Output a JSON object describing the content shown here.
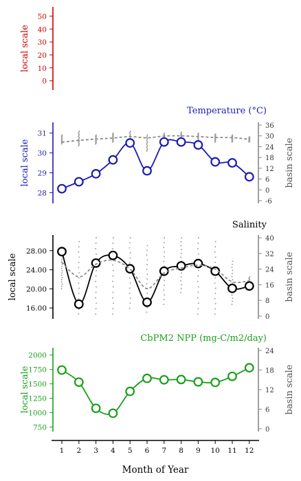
{
  "chart_data": [
    {
      "type": "line",
      "title": "",
      "left_ylabel": "local scale",
      "left_color": "#cc0000",
      "left_ticks": [
        "0",
        "10",
        "20",
        "30",
        "40",
        "50"
      ],
      "left_ylim": [
        -5,
        55
      ],
      "series": []
    },
    {
      "type": "line",
      "title": "Temperature (°C)",
      "left_ylabel": "local scale",
      "right_ylabel": "basin scale",
      "left_color": "#1a1ab3",
      "left_ticks": [
        "28",
        "29",
        "30",
        "31"
      ],
      "left_ylim": [
        27.6,
        31.4
      ],
      "right_ticks": [
        "-6",
        "0",
        "6",
        "12",
        "18",
        "24",
        "30",
        "36"
      ],
      "right_ylim": [
        -6,
        36
      ],
      "x": [
        1,
        2,
        3,
        4,
        5,
        6,
        7,
        8,
        9,
        10,
        11,
        12
      ],
      "series": [
        {
          "name": "",
          "axis": "left",
          "values": [
            28.2,
            28.55,
            28.95,
            29.65,
            30.5,
            29.1,
            30.55,
            30.55,
            30.4,
            29.55,
            29.5,
            28.8
          ]
        },
        {
          "name": "",
          "axis": "right",
          "dashed": true,
          "values": [
            26.5,
            27.5,
            28.2,
            28.8,
            29.6,
            28.9,
            29.9,
            30,
            29.6,
            29.1,
            29,
            28.1
          ]
        }
      ],
      "scatter_band": {
        "axis": "right",
        "min": [
          25.5,
          24.5,
          25.5,
          26.5,
          24.5,
          21.5,
          26.5,
          26.5,
          26.5,
          26.5,
          26.5,
          26.5
        ],
        "max": [
          30.5,
          32.5,
          30.5,
          31.5,
          32.5,
          30.5,
          31.5,
          32,
          31.5,
          31,
          30.5,
          29.5
        ]
      }
    },
    {
      "type": "line",
      "title": "Salinity",
      "left_ylabel": "local scale",
      "right_ylabel": "basin scale",
      "left_color": "#000000",
      "left_ticks": [
        "16.00",
        "20.00",
        "24.00",
        "28.00"
      ],
      "left_ylim": [
        14.3,
        30.7
      ],
      "right_ticks": [
        "0",
        "8",
        "16",
        "24",
        "32",
        "40"
      ],
      "right_ylim": [
        0,
        40
      ],
      "x": [
        1,
        2,
        3,
        4,
        5,
        6,
        7,
        8,
        9,
        10,
        11,
        12
      ],
      "series": [
        {
          "name": "",
          "axis": "left",
          "values": [
            27.8,
            16.8,
            25.4,
            27,
            24.2,
            17.2,
            23.7,
            24.8,
            25.3,
            23.7,
            20.1,
            20.6
          ]
        },
        {
          "name": "",
          "axis": "right",
          "dashed": true,
          "values": [
            27.5,
            20,
            26.5,
            28.5,
            24,
            14,
            22,
            24.5,
            26,
            24,
            17.5,
            18
          ]
        }
      ],
      "scatter_band": {
        "axis": "right",
        "min": [
          14,
          1,
          1,
          1,
          4,
          2,
          6,
          12,
          1,
          1,
          6,
          14
        ],
        "max": [
          30,
          38,
          40,
          40,
          40,
          36,
          40,
          40,
          40,
          38,
          28,
          20
        ]
      }
    },
    {
      "type": "line",
      "title": "CbPM2 NPP (mg-C/m2/day)",
      "left_ylabel": "local scale",
      "right_ylabel": "basin scale",
      "left_color": "#1a9e1a",
      "left_ticks": [
        "750",
        "1000",
        "1250",
        "1500",
        "1750",
        "2000"
      ],
      "left_ylim": [
        720,
        2080
      ],
      "right_ticks": [
        "0",
        "6",
        "12",
        "18",
        "24"
      ],
      "right_ylim": [
        0,
        24
      ],
      "x": [
        1,
        2,
        3,
        4,
        5,
        6,
        7,
        8,
        9,
        10,
        11,
        12
      ],
      "series": [
        {
          "name": "",
          "axis": "left",
          "values": [
            1740,
            1530,
            1075,
            990,
            1370,
            1595,
            1570,
            1575,
            1535,
            1525,
            1630,
            1780
          ]
        }
      ]
    }
  ],
  "x_axis": {
    "label": "Month of Year",
    "ticks": [
      "1",
      "2",
      "3",
      "4",
      "5",
      "6",
      "7",
      "8",
      "9",
      "10",
      "11",
      "12"
    ]
  },
  "colors": {
    "basin": "#888888",
    "panel_title_default": "#000000"
  }
}
